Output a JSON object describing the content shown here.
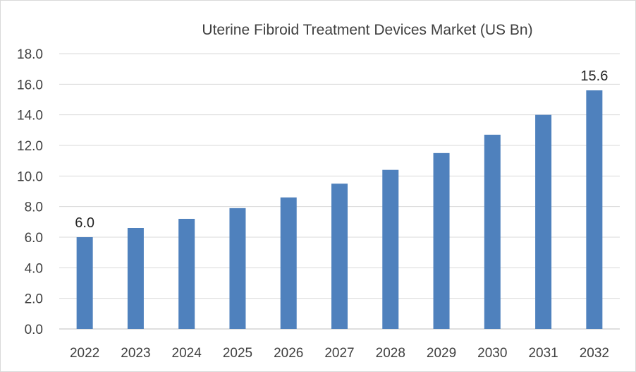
{
  "chart_data": {
    "type": "bar",
    "title": "Uterine Fibroid Treatment Devices Market (US Bn)",
    "xlabel": "",
    "ylabel": "",
    "categories": [
      "2022",
      "2023",
      "2024",
      "2025",
      "2026",
      "2027",
      "2028",
      "2029",
      "2030",
      "2031",
      "2032"
    ],
    "values": [
      6.0,
      6.6,
      7.2,
      7.9,
      8.6,
      9.5,
      10.4,
      11.5,
      12.7,
      14.0,
      15.6
    ],
    "ylim": [
      0,
      18
    ],
    "yticks": [
      "0.0",
      "2.0",
      "4.0",
      "6.0",
      "8.0",
      "10.0",
      "12.0",
      "14.0",
      "16.0",
      "18.0"
    ],
    "data_labels": [
      {
        "category": "2022",
        "text": "6.0"
      },
      {
        "category": "2032",
        "text": "15.6"
      }
    ],
    "grid": true,
    "legend": "none",
    "bar_color": "#4f81bd"
  }
}
